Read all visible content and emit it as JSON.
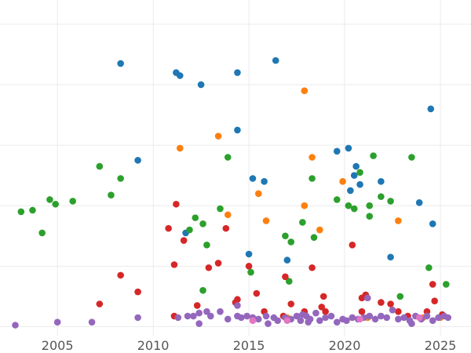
{
  "chart_data": {
    "type": "scatter",
    "title": "",
    "xlabel": "",
    "ylabel": "",
    "xlim": [
      2002.0,
      2026.6
    ],
    "ylim": [
      -0.3,
      10.8
    ],
    "x_ticks": [
      2005,
      2010,
      2015,
      2020,
      2025
    ],
    "x_tick_labels": [
      "2005",
      "2010",
      "2015",
      "2020",
      "2025"
    ],
    "y_gridlines": [
      0,
      2,
      4,
      6,
      8,
      10
    ],
    "grid": true,
    "legend": "none",
    "series": [
      {
        "color": "#1f77b4",
        "points": [
          [
            2008.3,
            8.7
          ],
          [
            2011.2,
            8.4
          ],
          [
            2011.4,
            8.3
          ],
          [
            2012.5,
            8.0
          ],
          [
            2014.4,
            8.4
          ],
          [
            2016.4,
            8.8
          ],
          [
            2024.5,
            7.2
          ],
          [
            2009.2,
            5.5
          ],
          [
            2014.4,
            6.5
          ],
          [
            2019.6,
            5.8
          ],
          [
            2020.2,
            5.9
          ],
          [
            2020.6,
            5.3
          ],
          [
            2020.5,
            5.0
          ],
          [
            2015.2,
            4.9
          ],
          [
            2015.8,
            4.8
          ],
          [
            2020.8,
            4.7
          ],
          [
            2021.9,
            4.8
          ],
          [
            2020.3,
            4.5
          ],
          [
            2023.9,
            4.1
          ],
          [
            2024.6,
            3.4
          ],
          [
            2011.7,
            3.1
          ],
          [
            2015.0,
            2.4
          ],
          [
            2017.0,
            2.2
          ],
          [
            2022.4,
            2.3
          ]
        ]
      },
      {
        "color": "#ff7f0e",
        "points": [
          [
            2017.9,
            7.8
          ],
          [
            2013.4,
            6.3
          ],
          [
            2011.4,
            5.9
          ],
          [
            2018.3,
            5.6
          ],
          [
            2019.9,
            4.8
          ],
          [
            2015.5,
            4.4
          ],
          [
            2017.9,
            4.0
          ],
          [
            2013.9,
            3.7
          ],
          [
            2015.9,
            3.5
          ],
          [
            2018.7,
            3.2
          ],
          [
            2022.8,
            3.5
          ],
          [
            2015.2,
            0.3
          ],
          [
            2017.0,
            0.3
          ],
          [
            2020.4,
            0.3
          ],
          [
            2021.2,
            0.3
          ],
          [
            2024.1,
            0.3
          ],
          [
            2025.0,
            0.3
          ]
        ]
      },
      {
        "color": "#2ca02c",
        "points": [
          [
            2003.1,
            3.8
          ],
          [
            2003.7,
            3.85
          ],
          [
            2004.2,
            3.1
          ],
          [
            2004.6,
            4.2
          ],
          [
            2004.9,
            4.05
          ],
          [
            2005.8,
            4.15
          ],
          [
            2007.2,
            5.3
          ],
          [
            2007.8,
            4.35
          ],
          [
            2008.3,
            4.9
          ],
          [
            2012.2,
            3.6
          ],
          [
            2011.9,
            3.2
          ],
          [
            2012.6,
            3.4
          ],
          [
            2012.8,
            2.7
          ],
          [
            2013.5,
            3.9
          ],
          [
            2013.9,
            5.6
          ],
          [
            2012.6,
            1.2
          ],
          [
            2015.1,
            1.8
          ],
          [
            2016.9,
            3.0
          ],
          [
            2017.2,
            2.8
          ],
          [
            2017.8,
            3.45
          ],
          [
            2018.3,
            4.9
          ],
          [
            2018.4,
            2.95
          ],
          [
            2019.6,
            4.2
          ],
          [
            2020.2,
            4.0
          ],
          [
            2020.5,
            3.9
          ],
          [
            2020.8,
            5.1
          ],
          [
            2021.3,
            4.0
          ],
          [
            2021.3,
            3.65
          ],
          [
            2021.5,
            5.65
          ],
          [
            2021.9,
            4.3
          ],
          [
            2022.4,
            4.15
          ],
          [
            2023.5,
            5.6
          ],
          [
            2024.4,
            1.95
          ],
          [
            2025.3,
            1.4
          ],
          [
            2017.1,
            1.5
          ],
          [
            2022.9,
            1.0
          ]
        ]
      },
      {
        "color": "#d62728",
        "points": [
          [
            2011.2,
            4.05
          ],
          [
            2010.8,
            3.25
          ],
          [
            2011.6,
            2.85
          ],
          [
            2013.8,
            3.25
          ],
          [
            2011.1,
            2.05
          ],
          [
            2012.9,
            1.95
          ],
          [
            2013.4,
            2.1
          ],
          [
            2008.3,
            1.7
          ],
          [
            2009.2,
            1.15
          ],
          [
            2007.2,
            0.75
          ],
          [
            2014.4,
            0.9
          ],
          [
            2014.3,
            0.8
          ],
          [
            2015.0,
            2.0
          ],
          [
            2015.4,
            1.1
          ],
          [
            2016.9,
            1.65
          ],
          [
            2018.3,
            1.95
          ],
          [
            2020.4,
            2.7
          ],
          [
            2018.9,
            1.0
          ],
          [
            2018.8,
            0.65
          ],
          [
            2020.9,
            0.95
          ],
          [
            2021.1,
            1.05
          ],
          [
            2021.9,
            0.8
          ],
          [
            2022.4,
            0.75
          ],
          [
            2024.6,
            1.4
          ],
          [
            2024.7,
            0.85
          ],
          [
            2011.1,
            0.35
          ],
          [
            2012.3,
            0.7
          ],
          [
            2015.8,
            0.5
          ],
          [
            2017.2,
            0.75
          ],
          [
            2017.9,
            0.5
          ],
          [
            2019.0,
            0.5
          ],
          [
            2020.9,
            0.5
          ],
          [
            2022.8,
            0.5
          ],
          [
            2024.3,
            0.5
          ],
          [
            2025.1,
            0.4
          ],
          [
            2016.8,
            0.35
          ],
          [
            2023.3,
            0.35
          ]
        ]
      },
      {
        "color": "#9467bd",
        "points": [
          [
            2002.8,
            0.05
          ],
          [
            2005.0,
            0.15
          ],
          [
            2006.8,
            0.15
          ],
          [
            2009.2,
            0.3
          ],
          [
            2011.3,
            0.3
          ],
          [
            2011.8,
            0.35
          ],
          [
            2012.1,
            0.35
          ],
          [
            2012.4,
            0.45
          ],
          [
            2012.8,
            0.5
          ],
          [
            2013.0,
            0.35
          ],
          [
            2012.4,
            0.1
          ],
          [
            2013.9,
            0.25
          ],
          [
            2014.4,
            0.35
          ],
          [
            2014.6,
            0.3
          ],
          [
            2014.9,
            0.35
          ],
          [
            2014.4,
            0.7
          ],
          [
            2015.2,
            0.3
          ],
          [
            2015.5,
            0.25
          ],
          [
            2015.9,
            0.35
          ],
          [
            2016.0,
            0.1
          ],
          [
            2016.3,
            0.3
          ],
          [
            2016.5,
            0.2
          ],
          [
            2016.9,
            0.3
          ],
          [
            2017.2,
            0.25
          ],
          [
            2017.5,
            0.35
          ],
          [
            2017.7,
            0.2
          ],
          [
            2017.8,
            0.4
          ],
          [
            2018.0,
            0.35
          ],
          [
            2018.2,
            0.25
          ],
          [
            2018.5,
            0.45
          ],
          [
            2018.7,
            0.2
          ],
          [
            2019.0,
            0.3
          ],
          [
            2019.3,
            0.35
          ],
          [
            2019.6,
            0.15
          ],
          [
            2019.9,
            0.25
          ],
          [
            2020.1,
            0.2
          ],
          [
            2020.4,
            0.3
          ],
          [
            2020.7,
            0.25
          ],
          [
            2021.0,
            0.3
          ],
          [
            2021.3,
            0.35
          ],
          [
            2021.6,
            0.25
          ],
          [
            2021.9,
            0.35
          ],
          [
            2022.2,
            0.3
          ],
          [
            2022.5,
            0.55
          ],
          [
            2022.8,
            0.25
          ],
          [
            2023.1,
            0.3
          ],
          [
            2023.4,
            0.2
          ],
          [
            2023.7,
            0.35
          ],
          [
            2024.0,
            0.25
          ],
          [
            2024.3,
            0.35
          ],
          [
            2024.6,
            0.2
          ],
          [
            2024.9,
            0.3
          ],
          [
            2025.2,
            0.35
          ],
          [
            2025.4,
            0.3
          ],
          [
            2021.2,
            0.95
          ],
          [
            2013.5,
            0.5
          ],
          [
            2018.1,
            0.15
          ],
          [
            2023.5,
            0.1
          ]
        ]
      },
      {
        "color": "#e377c2",
        "points": [
          [
            2015.2,
            0.2
          ],
          [
            2017.0,
            0.2
          ],
          [
            2020.8,
            0.25
          ],
          [
            2023.9,
            0.3
          ]
        ]
      }
    ]
  }
}
